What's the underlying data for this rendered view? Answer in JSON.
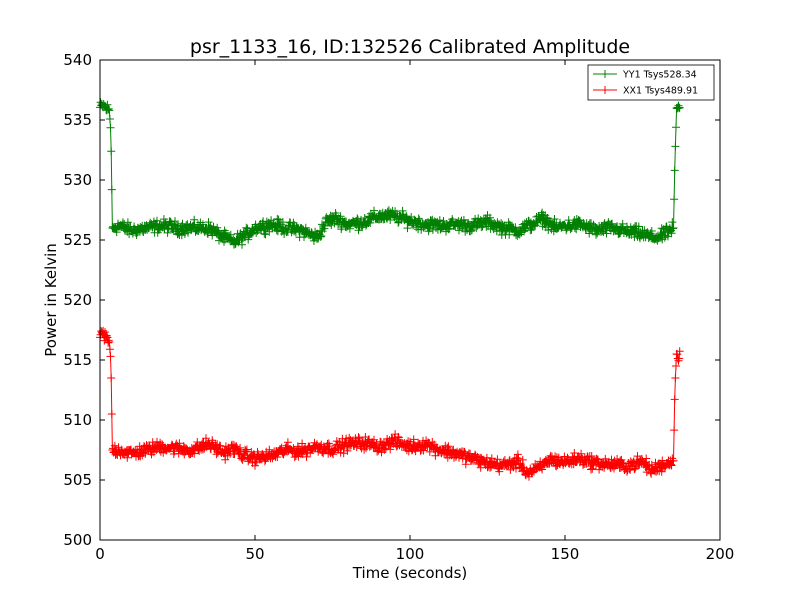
{
  "chart_data": {
    "type": "line",
    "title": "psr_1133_16, ID:132526 Calibrated Amplitude",
    "xlabel": "Time (seconds)",
    "ylabel": "Power in Kelvin",
    "xlim": [
      0,
      200
    ],
    "ylim": [
      500,
      540
    ],
    "xticks": [
      0,
      50,
      100,
      150,
      200
    ],
    "yticks": [
      500,
      505,
      510,
      515,
      520,
      525,
      530,
      535,
      540
    ],
    "grid": false,
    "legend_position": "top-right",
    "marker": "plus",
    "series": [
      {
        "name": "YY1 Tsys528.34",
        "color": "#008000",
        "x": [
          0,
          1,
          2,
          3,
          3.5,
          4,
          6,
          10,
          15,
          20,
          25,
          30,
          35,
          40,
          43,
          47,
          50,
          55,
          60,
          65,
          70,
          73,
          76,
          80,
          85,
          90,
          95,
          100,
          105,
          110,
          115,
          120,
          125,
          130,
          135,
          140,
          143,
          147,
          150,
          155,
          160,
          165,
          170,
          175,
          178,
          181,
          184,
          185,
          185.5,
          186,
          187
        ],
        "values": [
          536,
          536.2,
          536,
          535.8,
          534,
          526,
          526.2,
          525.8,
          526,
          526.2,
          526,
          526,
          526,
          525.2,
          524.8,
          525.4,
          526,
          526.3,
          526,
          525.8,
          525.2,
          526.5,
          526.8,
          526.3,
          526.5,
          527,
          527,
          526.6,
          526.3,
          526.2,
          526.3,
          526.2,
          526.5,
          526,
          525.8,
          526.4,
          526.8,
          526,
          526.2,
          526.3,
          525.8,
          526,
          525.7,
          525.5,
          525.2,
          525.3,
          525.8,
          526,
          532,
          536,
          535.8
        ]
      },
      {
        "name": "XX1 Tsys489.91",
        "color": "#ff0000",
        "x": [
          0,
          1,
          2,
          3,
          3.5,
          4,
          6,
          10,
          15,
          20,
          25,
          30,
          35,
          40,
          43,
          47,
          50,
          55,
          60,
          65,
          70,
          75,
          80,
          85,
          90,
          95,
          100,
          105,
          110,
          115,
          120,
          125,
          130,
          135,
          138,
          142,
          145,
          150,
          155,
          160,
          165,
          170,
          175,
          178,
          181,
          184,
          185,
          185.5,
          186,
          187
        ],
        "values": [
          517,
          517.2,
          516.8,
          516.5,
          515,
          507.5,
          507.5,
          507.2,
          507.5,
          507.8,
          507.6,
          507.5,
          508,
          507.3,
          507.6,
          507,
          506.8,
          507,
          507.5,
          507.4,
          507.8,
          507.6,
          508,
          508.1,
          507.8,
          508.2,
          507.8,
          508,
          507.5,
          507.2,
          506.8,
          506.4,
          506.2,
          506.5,
          505.6,
          506,
          506.7,
          506.5,
          506.8,
          506.4,
          506.3,
          506.2,
          506.5,
          505.8,
          506.2,
          506.5,
          506.6,
          513,
          515.5,
          515.4
        ]
      }
    ]
  }
}
